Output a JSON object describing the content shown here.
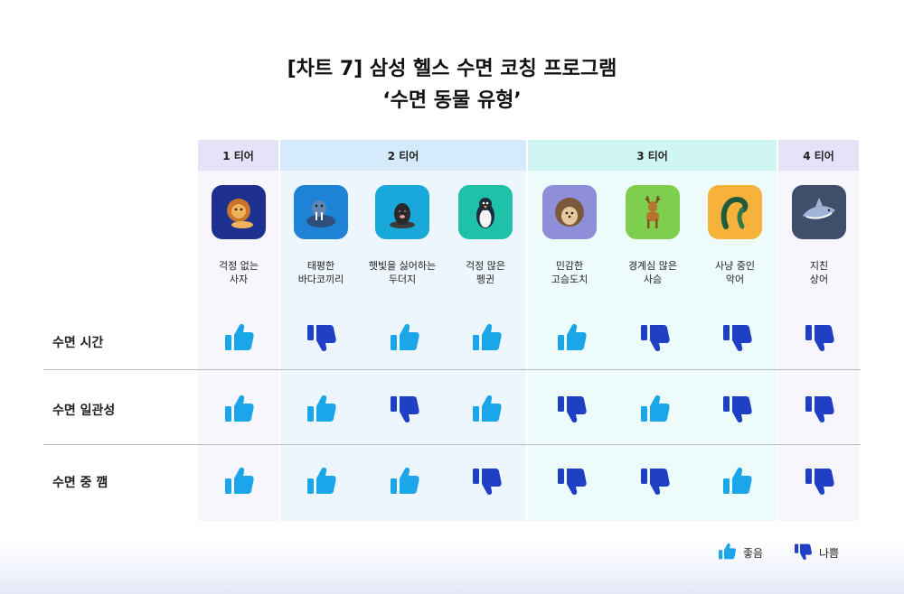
{
  "title": {
    "line1": "[차트 7] 삼성 헬스 수면 코칭 프로그램",
    "line2": "‘수면 동물 유형’"
  },
  "tiers": [
    "1 티어",
    "2 티어",
    "3 티어",
    "4 티어"
  ],
  "columns": [
    {
      "line1": "걱정 없는",
      "line2": "사자",
      "icon": "lion-icon",
      "tile_color": "#1d2f8f"
    },
    {
      "line1": "태평한",
      "line2": "바다코끼리",
      "icon": "walrus-icon",
      "tile_color": "#1e82d6"
    },
    {
      "line1": "햇빛을 싫어하는",
      "line2": "두더지",
      "icon": "mole-icon",
      "tile_color": "#18a8d9"
    },
    {
      "line1": "걱정 많은",
      "line2": "펭귄",
      "icon": "penguin-icon",
      "tile_color": "#1fc1a8"
    },
    {
      "line1": "민감한",
      "line2": "고슴도치",
      "icon": "hedgehog-icon",
      "tile_color": "#8f8fd9"
    },
    {
      "line1": "경계심 많은",
      "line2": "사슴",
      "icon": "deer-icon",
      "tile_color": "#7fcf4f"
    },
    {
      "line1": "사냥 중인",
      "line2": "악어",
      "icon": "crocodile-icon",
      "tile_color": "#f6b23b"
    },
    {
      "line1": "지친",
      "line2": "상어",
      "icon": "shark-icon",
      "tile_color": "#3f4f6a"
    }
  ],
  "rows": [
    {
      "label": "수면 시간",
      "values": [
        "good",
        "bad",
        "good",
        "good",
        "good",
        "bad",
        "bad",
        "bad"
      ]
    },
    {
      "label": "수면 일관성",
      "values": [
        "good",
        "good",
        "bad",
        "good",
        "bad",
        "good",
        "bad",
        "bad"
      ]
    },
    {
      "label": "수면 중 깸",
      "values": [
        "good",
        "good",
        "good",
        "bad",
        "bad",
        "bad",
        "good",
        "bad"
      ]
    }
  ],
  "legend": {
    "good": "좋음",
    "bad": "나쁨"
  },
  "colors": {
    "good": "#1aa6e8",
    "bad": "#1f3fc4"
  }
}
